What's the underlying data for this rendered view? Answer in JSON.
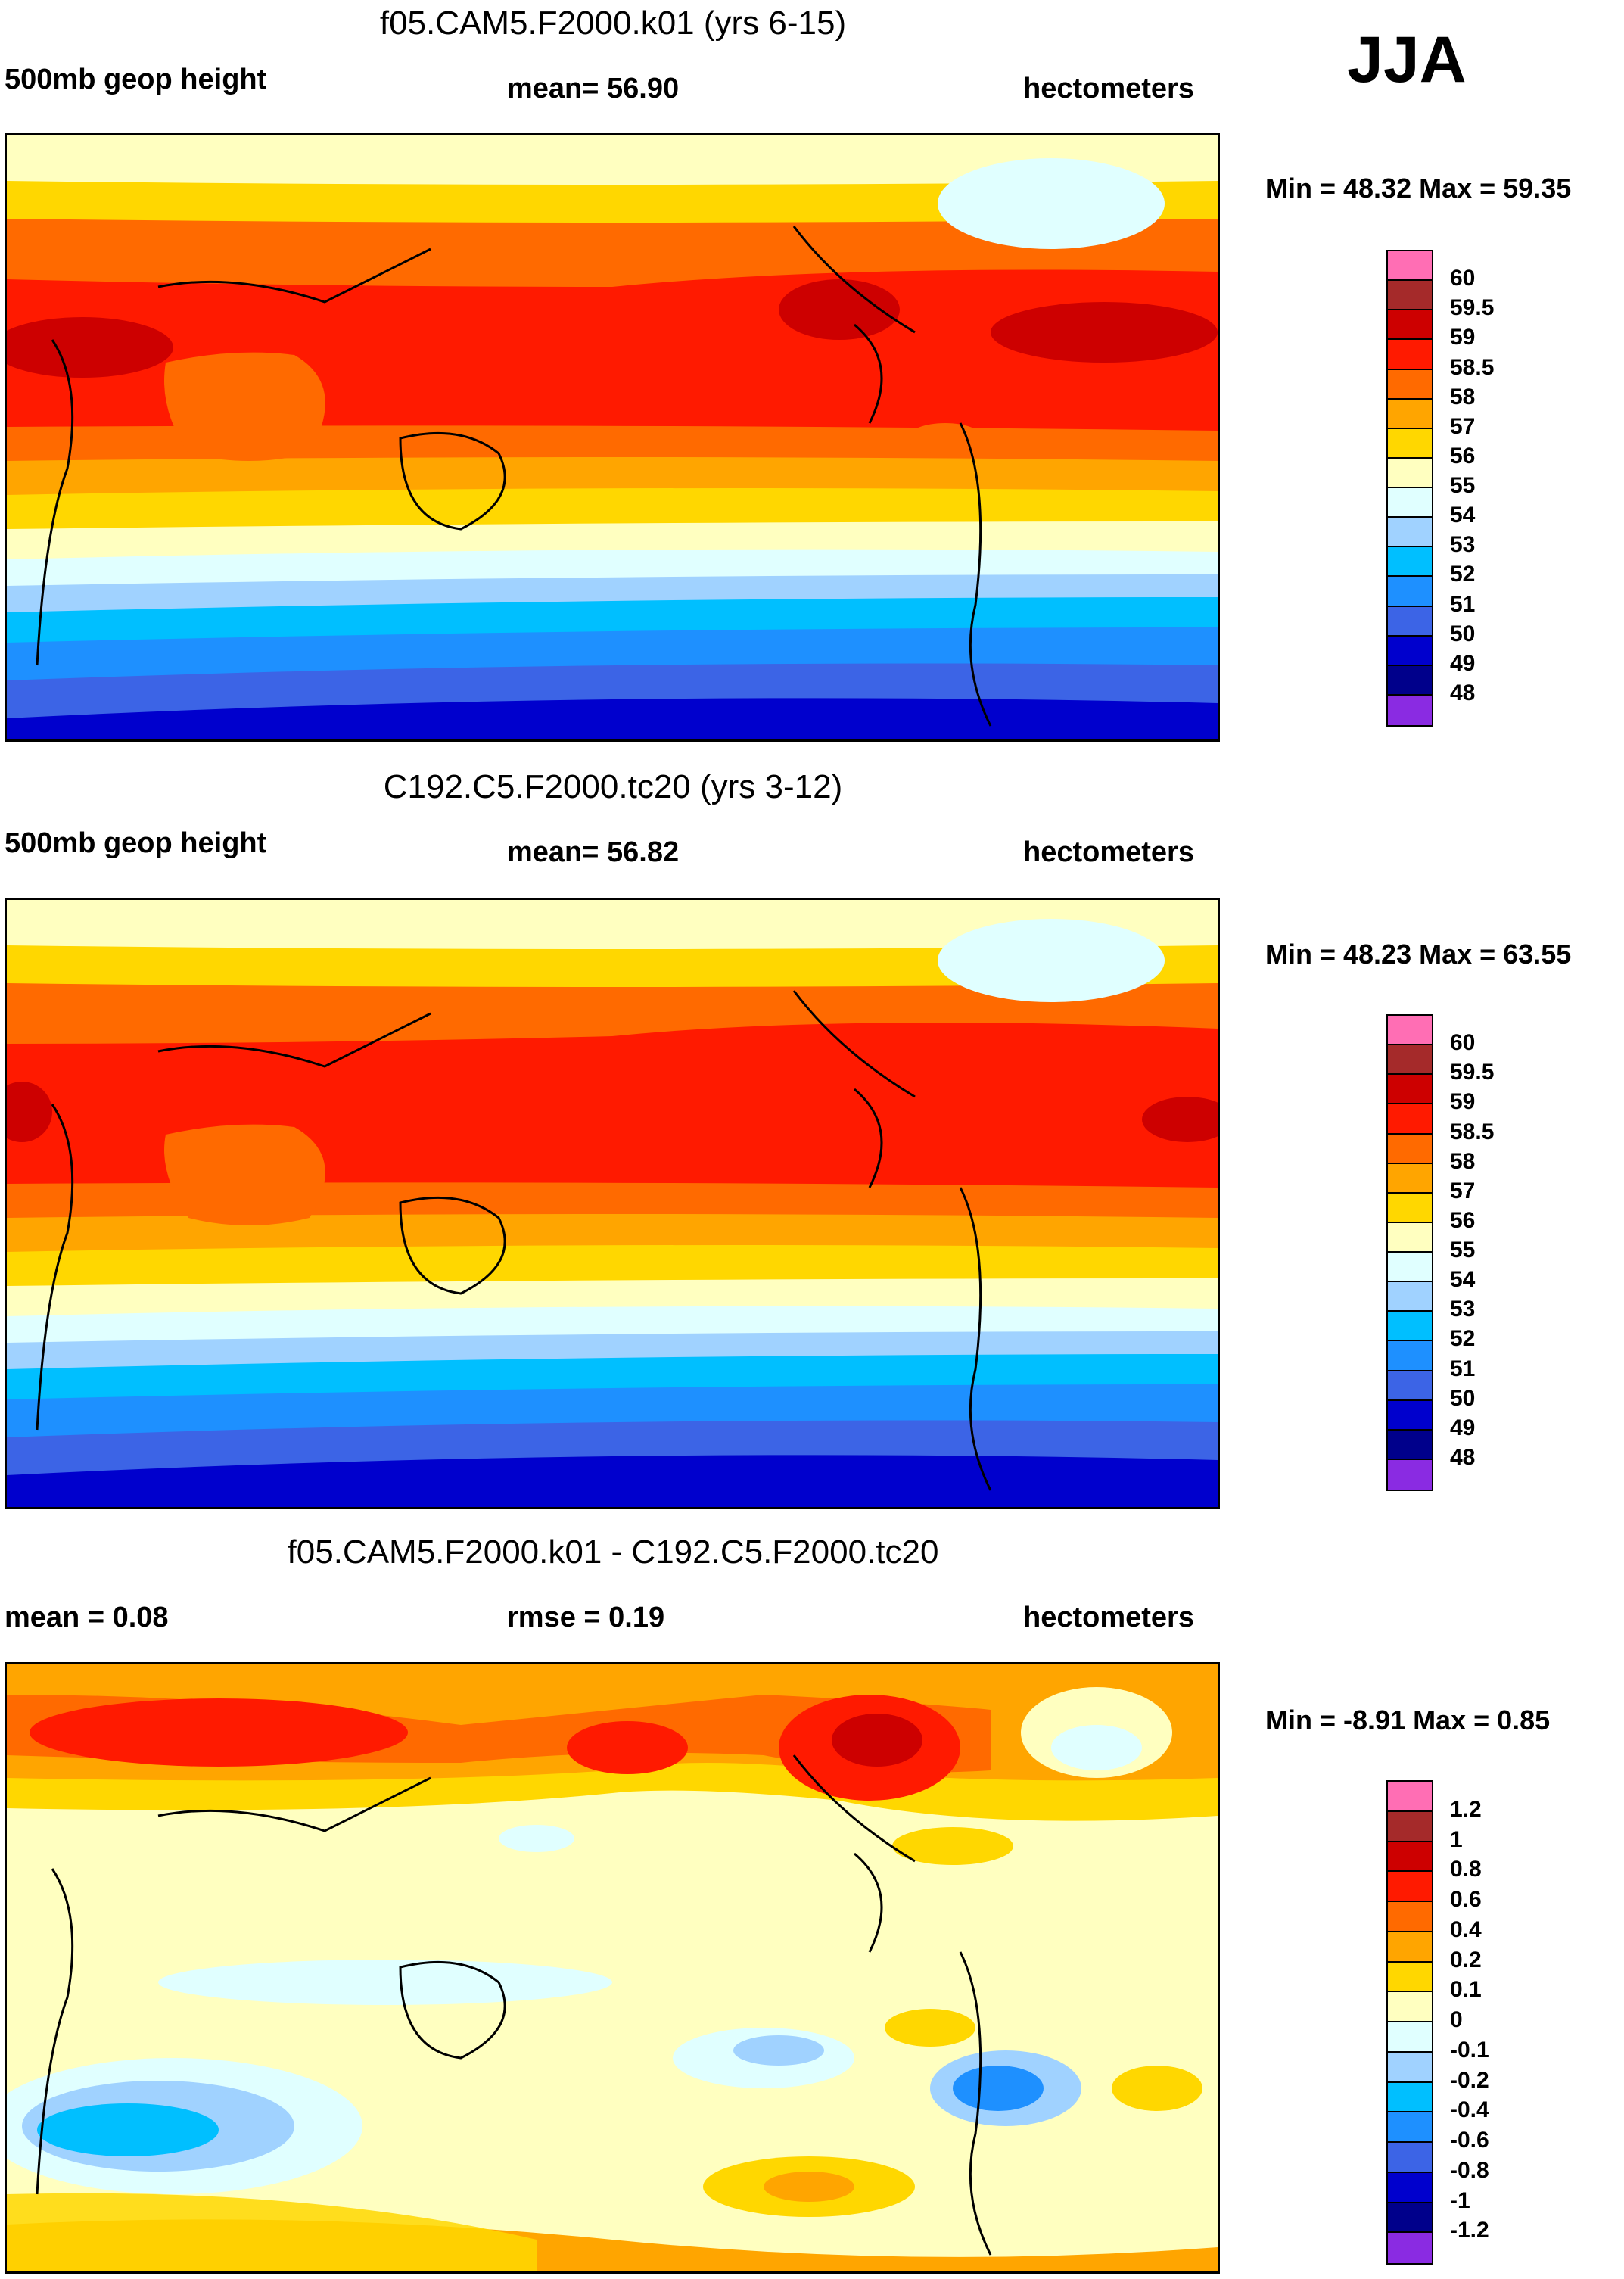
{
  "season": "JJA",
  "panels": [
    {
      "title": "f05.CAM5.F2000.k01 (yrs 6-15)",
      "left_label": "500mb geop height",
      "center_label": "mean=  56.90",
      "right_label": "hectometers",
      "minmax": "Min =  48.32 Max =  59.35",
      "palette": "height"
    },
    {
      "title": "C192.C5.F2000.tc20 (yrs 3-12)",
      "left_label": "500mb geop height",
      "center_label": "mean=  56.82",
      "right_label": "hectometers",
      "minmax": "Min =  48.23 Max =  63.55",
      "palette": "height"
    },
    {
      "title": "f05.CAM5.F2000.k01 - C192.C5.F2000.tc20",
      "left_label": "mean =   0.08",
      "center_label": "rmse =   0.19",
      "right_label": "hectometers",
      "minmax": "Min =  -8.91 Max =   0.85",
      "palette": "diff"
    }
  ],
  "colorbars": {
    "height": {
      "labels": [
        "60",
        "59.5",
        "59",
        "58.5",
        "58",
        "57",
        "56",
        "55",
        "54",
        "53",
        "52",
        "51",
        "50",
        "49",
        "48"
      ],
      "colors": [
        "#ff6eb4",
        "#a52a2a",
        "#cd0000",
        "#ff1a00",
        "#ff6a00",
        "#ffa500",
        "#ffd700",
        "#ffffc0",
        "#e0ffff",
        "#a0d2ff",
        "#00bfff",
        "#1e90ff",
        "#3c64e6",
        "#0000cd",
        "#00008b",
        "#8a2be2"
      ]
    },
    "diff": {
      "labels": [
        "1.2",
        "1",
        "0.8",
        "0.6",
        "0.4",
        "0.2",
        "0.1",
        "0",
        "-0.1",
        "-0.2",
        "-0.4",
        "-0.6",
        "-0.8",
        "-1",
        "-1.2"
      ],
      "colors": [
        "#ff6eb4",
        "#a52a2a",
        "#cd0000",
        "#ff1a00",
        "#ff6a00",
        "#ffa500",
        "#ffd700",
        "#ffffc0",
        "#e0ffff",
        "#a0d2ff",
        "#00bfff",
        "#1e90ff",
        "#3c64e6",
        "#0000cd",
        "#00008b",
        "#8a2be2"
      ]
    }
  }
}
